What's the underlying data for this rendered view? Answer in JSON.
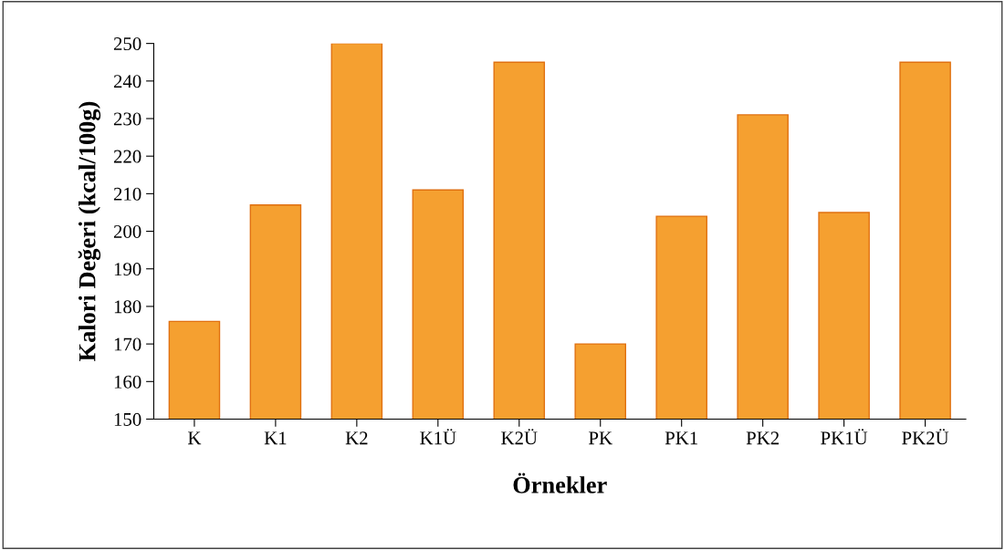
{
  "chart_data": {
    "type": "bar",
    "xlabel": "Örnekler",
    "ylabel": "Kalori Değeri (kcal/100g)",
    "categories": [
      "K",
      "K1",
      "K2",
      "K1Ü",
      "K2Ü",
      "PK",
      "PK1",
      "PK2",
      "PK1Ü",
      "PK2Ü"
    ],
    "values": [
      176,
      207,
      250,
      211,
      245,
      170,
      204,
      231,
      205,
      245
    ],
    "color": "#f5a030",
    "ylim": [
      150,
      250
    ],
    "yticks": [
      150,
      160,
      170,
      180,
      190,
      200,
      210,
      220,
      230,
      240,
      250
    ],
    "grid": false
  }
}
